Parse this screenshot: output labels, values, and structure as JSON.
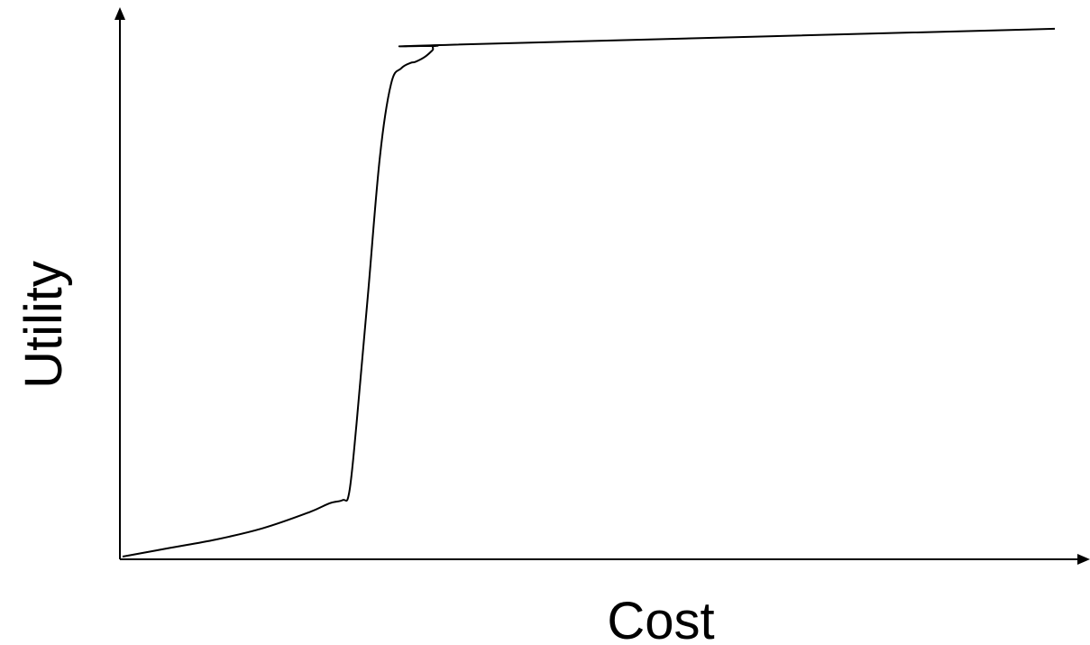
{
  "chart_data": {
    "type": "line",
    "title": "",
    "xlabel": "Cost",
    "ylabel": "Utility",
    "grid": false,
    "legend": "none",
    "xlim": [
      0,
      100
    ],
    "ylim": [
      0,
      100
    ],
    "series": [
      {
        "values_x": [
          0,
          5,
          10,
          15,
          20,
          22.2,
          23.6,
          24.3,
          25.1,
          26.3,
          27.6,
          28.8,
          29.9,
          30.9,
          31.4,
          32.4,
          33.2,
          33.3,
          33.3,
          33.8,
          35.3,
          100
        ],
        "values_y": [
          0,
          1.6,
          3.2,
          5.3,
          8.3,
          10.0,
          10.6,
          12.0,
          25.0,
          48.7,
          75.0,
          88.7,
          91.6,
          92.6,
          92.8,
          93.7,
          94.9,
          95.2,
          95.7,
          95.8,
          96.0,
          99.0
        ]
      }
    ],
    "colors": {
      "line": "#000000",
      "axis": "#000000",
      "background": "#ffffff"
    }
  }
}
